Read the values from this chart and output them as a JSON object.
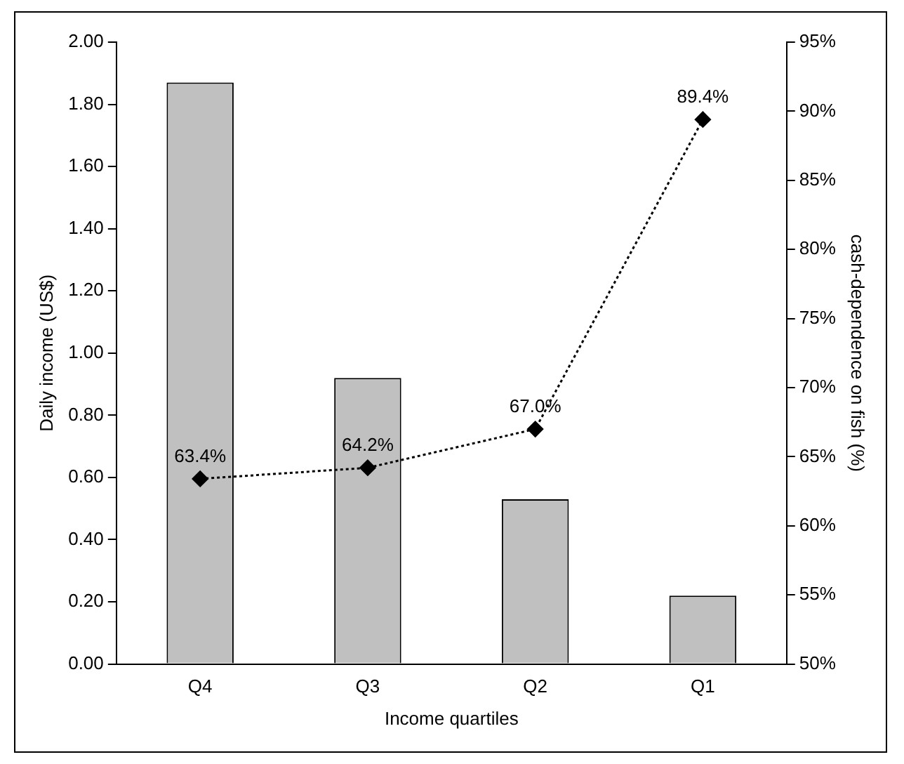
{
  "chart_data": {
    "type": "bar",
    "xlabel": "Income quartiles",
    "ylabel": "Daily income (US$)",
    "y2label": "cash-dependence on fish (%)",
    "categories": [
      "Q4",
      "Q3",
      "Q2",
      "Q1"
    ],
    "series": [
      {
        "color": "#c0c0c0",
        "values": [
          1.87,
          0.92,
          0.53,
          0.22
        ]
      },
      {
        "type": "line",
        "axis": "y2",
        "color": "#000000",
        "values": [
          63.4,
          64.2,
          67.0,
          89.4
        ],
        "value_labels": [
          "63.4%",
          "64.2%",
          "67.0%",
          "89.4%"
        ],
        "marker": "diamond",
        "line_style": "dotted"
      }
    ],
    "ylim": [
      0,
      2
    ],
    "yticks": [
      {
        "value": 0,
        "label": "0.00"
      },
      {
        "value": 0.2,
        "label": "0.20"
      },
      {
        "value": 0.4,
        "label": "0.40"
      },
      {
        "value": 0.6,
        "label": "0.60"
      },
      {
        "value": 0.8,
        "label": "0.80"
      },
      {
        "value": 1,
        "label": "1.00"
      },
      {
        "value": 1.2,
        "label": "1.20"
      },
      {
        "value": 1.4,
        "label": "1.40"
      },
      {
        "value": 1.6,
        "label": "1.60"
      },
      {
        "value": 1.8,
        "label": "1.80"
      },
      {
        "value": 2,
        "label": "2.00"
      }
    ],
    "y2lim": [
      50,
      95
    ],
    "y2ticks": [
      {
        "value": 50,
        "label": "50%"
      },
      {
        "value": 55,
        "label": "55%"
      },
      {
        "value": 60,
        "label": "60%"
      },
      {
        "value": 65,
        "label": "65%"
      },
      {
        "value": 70,
        "label": "70%"
      },
      {
        "value": 75,
        "label": "75%"
      },
      {
        "value": 80,
        "label": "80%"
      },
      {
        "value": 85,
        "label": "85%"
      },
      {
        "value": 90,
        "label": "90%"
      },
      {
        "value": 95,
        "label": "95%"
      }
    ],
    "grid": false,
    "legend": false
  }
}
